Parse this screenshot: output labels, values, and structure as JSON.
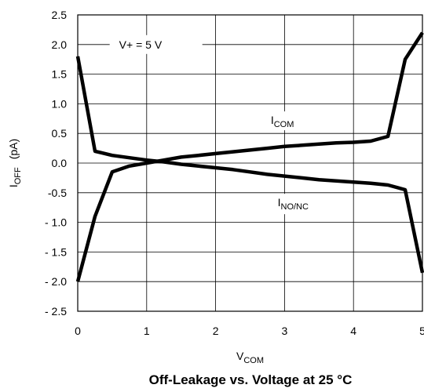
{
  "chart_data": {
    "type": "line",
    "title": "Off-Leakage vs. Voltage at 25 °C",
    "xlabel": {
      "main": "V",
      "sub": "COM"
    },
    "ylabel": {
      "main": "I",
      "sub": "OFF",
      "unit": "(pA)"
    },
    "xlim": [
      0,
      5
    ],
    "ylim": [
      -2.5,
      2.5
    ],
    "x_ticks": [
      0,
      1,
      2,
      3,
      4,
      5
    ],
    "x_tick_labels": [
      "0",
      "1",
      "2",
      "3",
      "4",
      "5"
    ],
    "y_ticks": [
      2.5,
      2.0,
      1.5,
      1.0,
      0.5,
      0.0,
      -0.5,
      -1.0,
      -1.5,
      -2.0,
      -2.5
    ],
    "y_tick_labels": [
      "2.5",
      "2.0",
      "1.5",
      "1.0",
      "0.5",
      "0.0",
      "-0.5",
      "- 1.0",
      "- 1.5",
      "- 2.0",
      "- 2.5"
    ],
    "grid": true,
    "annotation": "V+ = 5 V",
    "series": [
      {
        "name": {
          "main": "I",
          "sub": "COM"
        },
        "color": "#000000",
        "x": [
          0,
          0.25,
          0.5,
          0.75,
          1.0,
          1.25,
          1.5,
          1.75,
          2.0,
          2.25,
          2.5,
          2.75,
          3.0,
          3.25,
          3.5,
          3.75,
          4.0,
          4.25,
          4.5,
          4.75,
          5.0
        ],
        "y": [
          -2.0,
          -0.9,
          -0.15,
          -0.05,
          0.0,
          0.05,
          0.1,
          0.13,
          0.16,
          0.19,
          0.22,
          0.25,
          0.28,
          0.3,
          0.32,
          0.34,
          0.35,
          0.37,
          0.45,
          1.75,
          2.2
        ]
      },
      {
        "name": {
          "main": "I",
          "sub": "NO/NC"
        },
        "color": "#000000",
        "x": [
          0,
          0.25,
          0.5,
          0.75,
          1.0,
          1.25,
          1.5,
          1.75,
          2.0,
          2.25,
          2.5,
          2.75,
          3.0,
          3.25,
          3.5,
          3.75,
          4.0,
          4.25,
          4.5,
          4.75,
          5.0
        ],
        "y": [
          1.8,
          0.2,
          0.13,
          0.09,
          0.05,
          0.02,
          -0.02,
          -0.05,
          -0.08,
          -0.11,
          -0.15,
          -0.19,
          -0.22,
          -0.25,
          -0.28,
          -0.3,
          -0.32,
          -0.34,
          -0.37,
          -0.45,
          -1.85
        ]
      }
    ]
  }
}
